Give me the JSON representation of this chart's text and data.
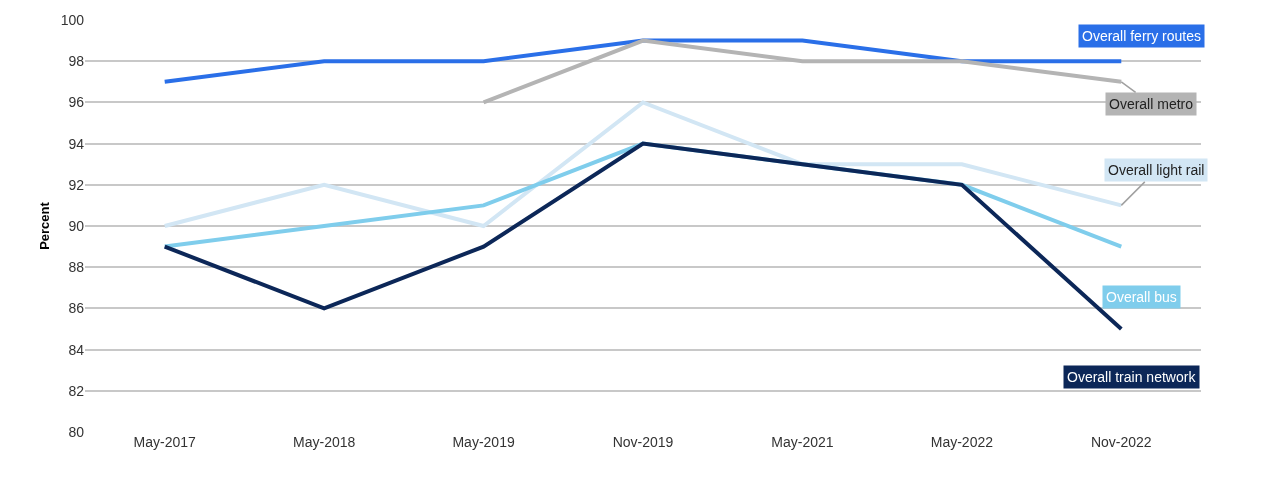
{
  "chart_data": {
    "type": "line",
    "ylabel": "Percent",
    "categories": [
      "May-2017",
      "May-2018",
      "May-2019",
      "Nov-2019",
      "May-2021",
      "May-2022",
      "Nov-2022"
    ],
    "ylim": [
      80,
      100
    ],
    "yticks": [
      80,
      82,
      84,
      86,
      88,
      90,
      92,
      94,
      96,
      98,
      100
    ],
    "grid": "y",
    "legend": false,
    "marker": "none",
    "line_style": "solid",
    "series": [
      {
        "name": "Overall ferry routes",
        "color": "#2a6fe8",
        "values": [
          97,
          98,
          98,
          99,
          99,
          98,
          98
        ]
      },
      {
        "name": "Overall metro",
        "color": "#b4b4b4",
        "values": [
          null,
          null,
          96,
          99,
          98,
          98,
          97
        ]
      },
      {
        "name": "Overall light rail",
        "color": "#d2e6f4",
        "values": [
          90,
          92,
          90,
          96,
          93,
          93,
          91
        ]
      },
      {
        "name": "Overall bus",
        "color": "#7fcdec",
        "values": [
          89,
          90,
          91,
          94,
          93,
          92,
          89
        ]
      },
      {
        "name": "Overall train network",
        "color": "#0c2758",
        "values": [
          89,
          86,
          89,
          94,
          93,
          92,
          85
        ]
      }
    ]
  }
}
